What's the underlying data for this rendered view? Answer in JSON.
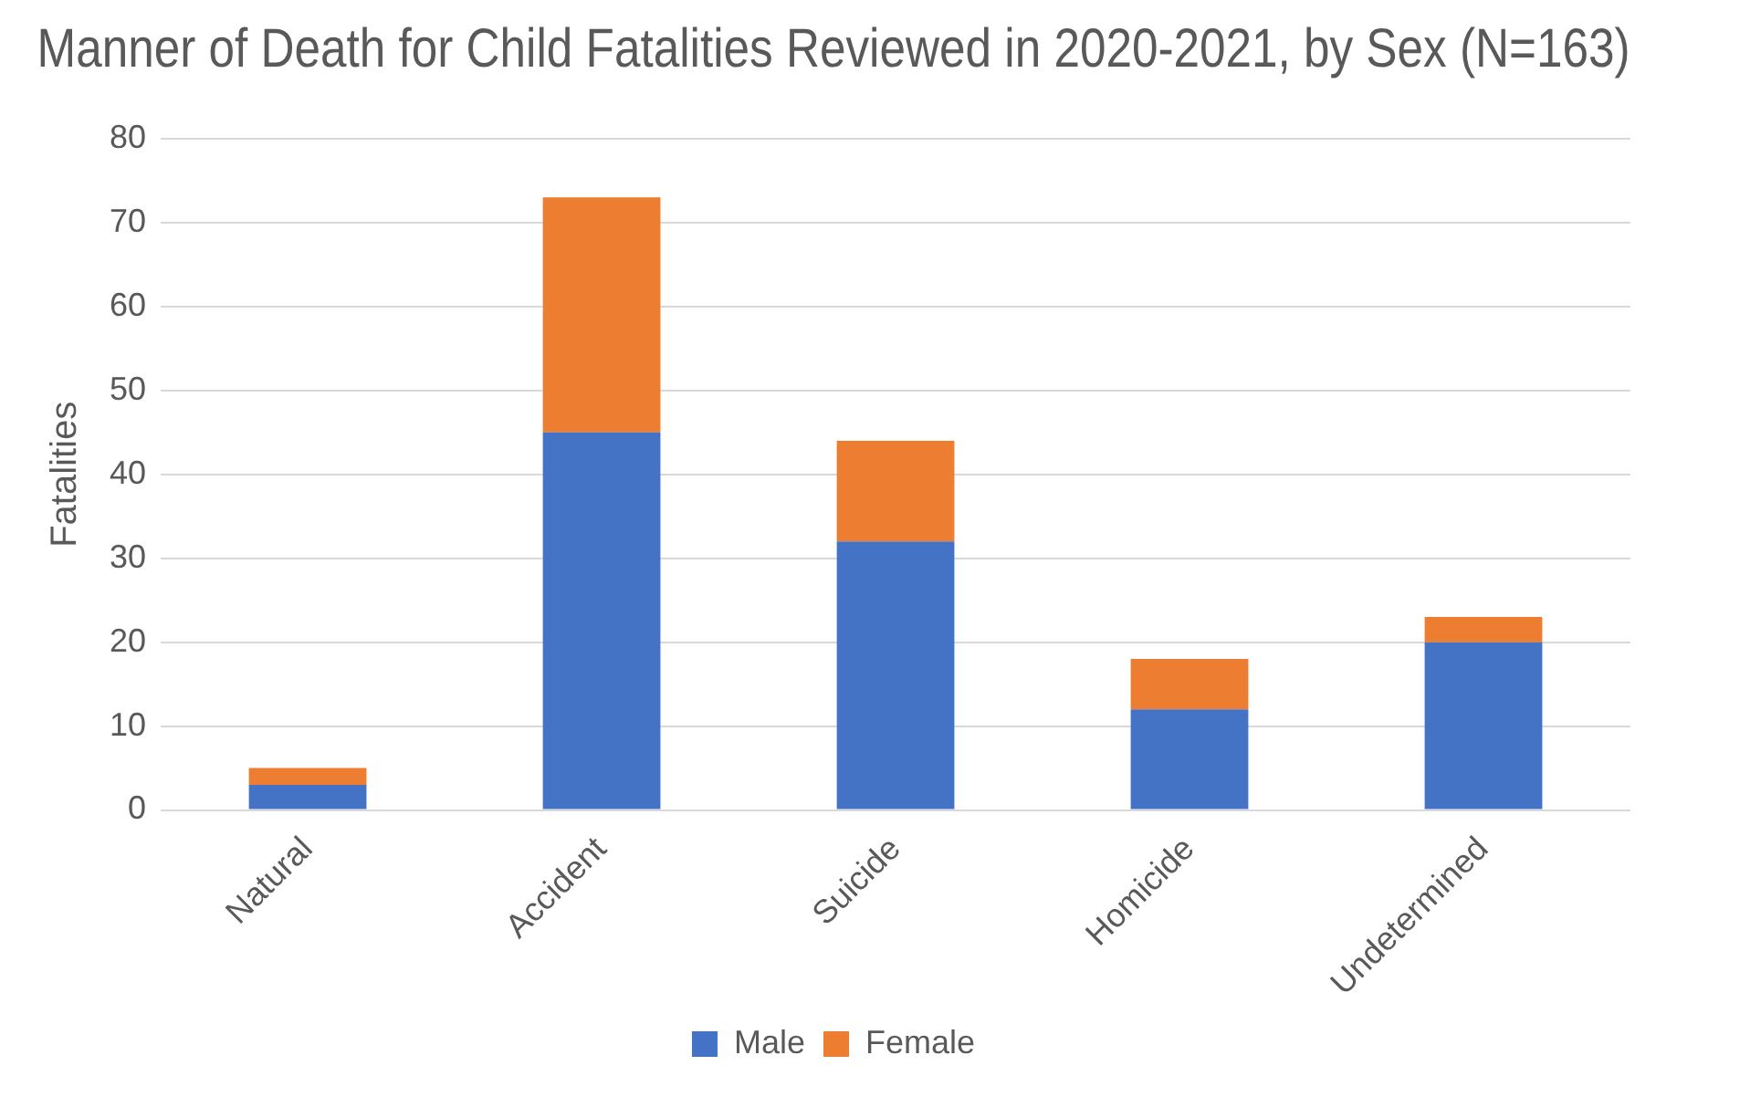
{
  "chart_data": {
    "type": "bar",
    "title": "Manner of Death for Child Fatalities Reviewed in 2020-2021, by Sex (N=163)",
    "ylabel": "Fatalities",
    "categories": [
      "Natural",
      "Accident",
      "Suicide",
      "Homicide",
      "Undetermined"
    ],
    "stacked": true,
    "series": [
      {
        "name": "Male",
        "color": "#4472c4",
        "values": [
          3,
          45,
          32,
          12,
          20
        ]
      },
      {
        "name": "Female",
        "color": "#ed7d31",
        "values": [
          2,
          28,
          12,
          6,
          3
        ]
      }
    ],
    "ylim": [
      0,
      80
    ],
    "yticks": [
      0,
      10,
      20,
      30,
      40,
      50,
      60,
      70,
      80
    ],
    "grid": "y",
    "legend": "bottom"
  }
}
